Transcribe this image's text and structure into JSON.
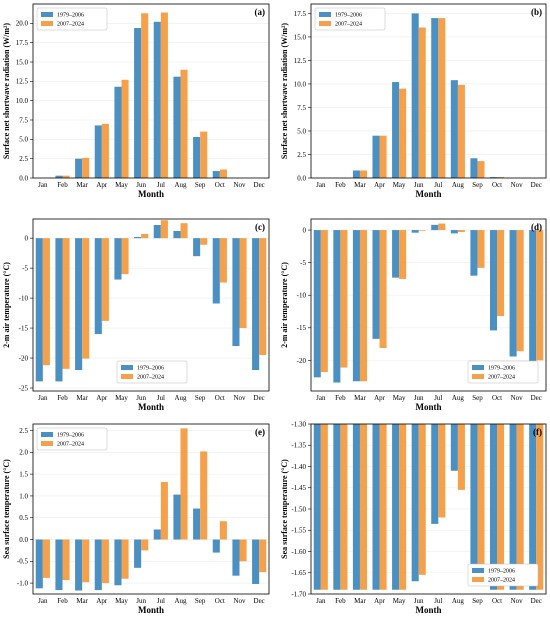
{
  "colors": {
    "series_a": "#4a90c2",
    "series_b": "#f5a04a"
  },
  "chart_data": [
    {
      "type": "bar",
      "panel_label": "(a)",
      "ylabel": "Surface net shortwave radiation (W/m²)",
      "xlabel": "Month",
      "categories": [
        "Jan",
        "Feb",
        "Mar",
        "Apr",
        "May",
        "Jun",
        "Jul",
        "Aug",
        "Sep",
        "Oct",
        "Nov",
        "Dec"
      ],
      "ylim": [
        0,
        22.5
      ],
      "yticks": [
        0,
        2.5,
        5,
        7.5,
        10,
        12.5,
        15,
        17.5,
        20
      ],
      "ytick_labels": [
        "0.0",
        "2.5",
        "5.0",
        "7.5",
        "10.0",
        "12.5",
        "15.0",
        "17.5",
        "20.0"
      ],
      "legend": "top-left",
      "series": [
        {
          "name": "1979–2006",
          "values": [
            0,
            0.3,
            2.5,
            6.8,
            11.8,
            19.4,
            20.2,
            13.1,
            5.3,
            0.9,
            0,
            0
          ]
        },
        {
          "name": "2007–2024",
          "values": [
            0,
            0.3,
            2.6,
            7.0,
            12.7,
            21.3,
            21.4,
            14.0,
            6.0,
            1.1,
            0,
            0
          ]
        }
      ]
    },
    {
      "type": "bar",
      "panel_label": "(b)",
      "ylabel": "Surface net shortwave radiation (W/m²)",
      "xlabel": "Month",
      "categories": [
        "Jan",
        "Feb",
        "Mar",
        "Apr",
        "May",
        "Jun",
        "Jul",
        "Aug",
        "Sep",
        "Oct",
        "Nov",
        "Dec"
      ],
      "ylim": [
        0,
        18.5
      ],
      "yticks": [
        0,
        2.5,
        5,
        7.5,
        10,
        12.5,
        15,
        17.5
      ],
      "ytick_labels": [
        "0.0",
        "2.5",
        "5.0",
        "7.5",
        "10.0",
        "12.5",
        "15.0",
        "17.5"
      ],
      "legend": "top-left",
      "series": [
        {
          "name": "1979–2006",
          "values": [
            0,
            0,
            0.8,
            4.5,
            10.2,
            17.5,
            17.0,
            10.4,
            2.1,
            0.1,
            0,
            0
          ]
        },
        {
          "name": "2007–2024",
          "values": [
            0,
            0,
            0.8,
            4.5,
            9.5,
            16.0,
            17.0,
            9.9,
            1.8,
            0.1,
            0,
            0
          ]
        }
      ]
    },
    {
      "type": "bar",
      "panel_label": "(c)",
      "ylabel": "2-m air temperature (°C)",
      "xlabel": "Month",
      "categories": [
        "Jan",
        "Feb",
        "Mar",
        "Apr",
        "May",
        "Jun",
        "Jul",
        "Aug",
        "Sep",
        "Oct",
        "Nov",
        "Dec"
      ],
      "ylim": [
        -25.5,
        3.2
      ],
      "yticks": [
        0,
        -5,
        -10,
        -15,
        -20,
        -25
      ],
      "ytick_labels": [
        "0",
        "-5",
        "-10",
        "-15",
        "-20",
        "-25"
      ],
      "legend": "bottom-center",
      "series": [
        {
          "name": "1979–2006",
          "values": [
            -23.9,
            -23.9,
            -22.0,
            -16.0,
            -6.9,
            0.2,
            2.2,
            1.2,
            -3.0,
            -10.9,
            -18.0,
            -22.0
          ]
        },
        {
          "name": "2007–2024",
          "values": [
            -21.2,
            -21.8,
            -20.1,
            -13.8,
            -6.0,
            0.7,
            3.0,
            2.5,
            -1.1,
            -7.4,
            -15.0,
            -19.5
          ]
        }
      ]
    },
    {
      "type": "bar",
      "panel_label": "(d)",
      "ylabel": "2-m air temperature (°C)",
      "xlabel": "Month",
      "categories": [
        "Jan",
        "Feb",
        "Mar",
        "Apr",
        "May",
        "Jun",
        "Jul",
        "Aug",
        "Sep",
        "Oct",
        "Nov",
        "Dec"
      ],
      "ylim": [
        -24.7,
        1.7
      ],
      "yticks": [
        0,
        -5,
        -10,
        -15,
        -20
      ],
      "ytick_labels": [
        "0",
        "-5",
        "-10",
        "-15",
        "-20"
      ],
      "legend": "bottom-right",
      "series": [
        {
          "name": "1979–2006",
          "values": [
            -22.6,
            -23.4,
            -23.2,
            -16.7,
            -7.3,
            -0.4,
            0.8,
            -0.5,
            -7.0,
            -15.4,
            -19.4,
            -22.0
          ]
        },
        {
          "name": "2007–2024",
          "values": [
            -21.8,
            -21.1,
            -23.2,
            -18.1,
            -7.5,
            -0.1,
            1.0,
            -0.3,
            -5.8,
            -13.2,
            -18.6,
            -20.0
          ]
        }
      ]
    },
    {
      "type": "bar",
      "panel_label": "(e)",
      "ylabel": "Sea surface temperature (°C)",
      "xlabel": "Month",
      "categories": [
        "Jan",
        "Feb",
        "Mar",
        "Apr",
        "May",
        "Jun",
        "Jul",
        "Aug",
        "Sep",
        "Oct",
        "Nov",
        "Dec"
      ],
      "ylim": [
        -1.25,
        2.65
      ],
      "yticks": [
        -1.0,
        -0.5,
        0.0,
        0.5,
        1.0,
        1.5,
        2.0,
        2.5
      ],
      "ytick_labels": [
        "-1.0",
        "-0.5",
        "0.0",
        "0.5",
        "1.0",
        "1.5",
        "2.0",
        "2.5"
      ],
      "legend": "top-left",
      "series": [
        {
          "name": "1979–2006",
          "values": [
            -1.12,
            -1.16,
            -1.17,
            -1.16,
            -1.05,
            -0.65,
            0.23,
            1.03,
            0.71,
            -0.3,
            -0.83,
            -1.02
          ]
        },
        {
          "name": "2007–2024",
          "values": [
            -0.88,
            -0.93,
            -0.98,
            -1.0,
            -0.9,
            -0.25,
            1.32,
            2.55,
            2.02,
            0.42,
            -0.5,
            -0.75
          ]
        }
      ]
    },
    {
      "type": "bar",
      "panel_label": "(f)",
      "ylabel": "Sea surface temperature (°C)",
      "xlabel": "Month",
      "categories": [
        "Jan",
        "Feb",
        "Mar",
        "Apr",
        "May",
        "Jun",
        "Jul",
        "Aug",
        "Sep",
        "Oct",
        "Nov",
        "Dec"
      ],
      "ylim": [
        -1.7,
        -1.3
      ],
      "yticks": [
        -1.3,
        -1.35,
        -1.4,
        -1.45,
        -1.5,
        -1.55,
        -1.6,
        -1.65,
        -1.7
      ],
      "ytick_labels": [
        "-1.30",
        "-1.35",
        "-1.40",
        "-1.45",
        "-1.50",
        "-1.55",
        "-1.60",
        "-1.65",
        "-1.70"
      ],
      "baseline": -1.3,
      "legend": "bottom-right",
      "series": [
        {
          "name": "1979–2006",
          "values": [
            -1.69,
            -1.69,
            -1.69,
            -1.69,
            -1.69,
            -1.67,
            -1.535,
            -1.41,
            -1.63,
            -1.69,
            -1.69,
            -1.69
          ]
        },
        {
          "name": "2007–2024",
          "values": [
            -1.69,
            -1.69,
            -1.69,
            -1.69,
            -1.69,
            -1.655,
            -1.52,
            -1.455,
            -1.645,
            -1.69,
            -1.69,
            -1.69
          ]
        }
      ]
    }
  ]
}
